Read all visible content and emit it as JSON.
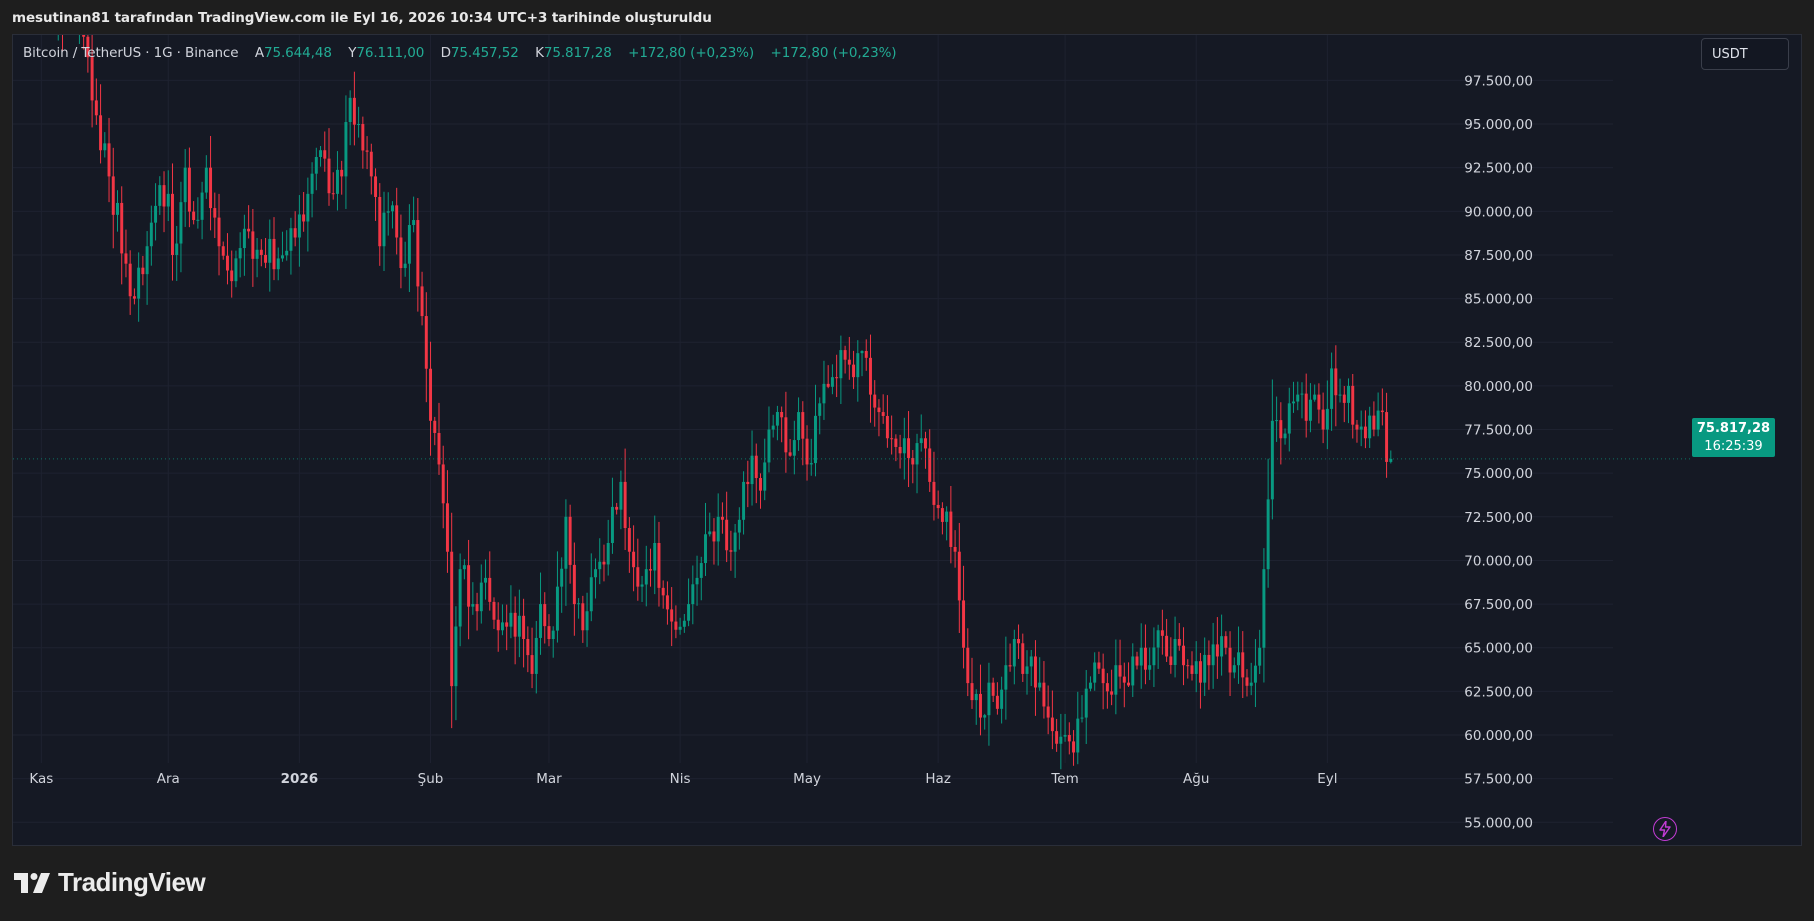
{
  "header": {
    "caption": "mesutinan81 tarafından TradingView.com ile Eyl 16, 2026 10:34 UTC+3 tarihinde oluşturuldu"
  },
  "legend": {
    "symbol": "Bitcoin / TetherUS · 1G · Binance",
    "open_label": "A",
    "open": "75.644,48",
    "high_label": "Y",
    "high": "76.111,00",
    "low_label": "D",
    "low": "75.457,52",
    "close_label": "K",
    "close": "75.817,28",
    "change1": "+172,80 (+0,23%)",
    "change2": "+172,80 (+0,23%)"
  },
  "currency_button": "USDT",
  "last_price": {
    "price": "75.817,28",
    "countdown": "16:25:39"
  },
  "footer": {
    "logo_text": "TradingView"
  },
  "colors": {
    "up": "#089981",
    "down": "#f23645",
    "background": "#151924",
    "grid": "#1e2230",
    "text": "#d1d4dc"
  },
  "chart_data": {
    "type": "candlestick",
    "currency": "USDT",
    "y_ticks": [
      "55.000,00",
      "57.500,00",
      "60.000,00",
      "62.500,00",
      "65.000,00",
      "67.500,00",
      "70.000,00",
      "72.500,00",
      "75.000,00",
      "77.500,00",
      "80.000,00",
      "82.500,00",
      "85.000,00",
      "87.500,00",
      "90.000,00",
      "92.500,00",
      "95.000,00",
      "97.500,00"
    ],
    "y_tick_values": [
      55000,
      57500,
      60000,
      62500,
      65000,
      67500,
      70000,
      72500,
      75000,
      77500,
      80000,
      82500,
      85000,
      87500,
      90000,
      92500,
      95000,
      97500
    ],
    "ylim": [
      53700,
      100100
    ],
    "x_labels": [
      "Kas",
      "Ara",
      "2026",
      "Şub",
      "Mar",
      "Nis",
      "May",
      "Haz",
      "Tem",
      "Ağu",
      "Eyl"
    ],
    "x_label_days": [
      0,
      30,
      61,
      92,
      120,
      151,
      181,
      212,
      242,
      273,
      304
    ],
    "day_range": [
      -6.7,
      328.5
    ],
    "last_close": 75817.28,
    "series_anchor_closes": [
      {
        "day": 3,
        "close": 100500
      },
      {
        "day": 10,
        "close": 100000
      },
      {
        "day": 13,
        "close": 95500
      },
      {
        "day": 16,
        "close": 92000
      },
      {
        "day": 20,
        "close": 87000
      },
      {
        "day": 22,
        "close": 85000
      },
      {
        "day": 25,
        "close": 88000
      },
      {
        "day": 28,
        "close": 91500
      },
      {
        "day": 30,
        "close": 91000
      },
      {
        "day": 31,
        "close": 87500
      },
      {
        "day": 34,
        "close": 92500
      },
      {
        "day": 36,
        "close": 89500
      },
      {
        "day": 39,
        "close": 92500
      },
      {
        "day": 42,
        "close": 88000
      },
      {
        "day": 45,
        "close": 86000
      },
      {
        "day": 48,
        "close": 89000
      },
      {
        "day": 52,
        "close": 87500
      },
      {
        "day": 56,
        "close": 87300
      },
      {
        "day": 60,
        "close": 88500
      },
      {
        "day": 63,
        "close": 91000
      },
      {
        "day": 66,
        "close": 93500
      },
      {
        "day": 69,
        "close": 91000
      },
      {
        "day": 71,
        "close": 92000
      },
      {
        "day": 73,
        "close": 96500
      },
      {
        "day": 75,
        "close": 95000
      },
      {
        "day": 78,
        "close": 92000
      },
      {
        "day": 80,
        "close": 88000
      },
      {
        "day": 82,
        "close": 90000
      },
      {
        "day": 84,
        "close": 88500
      },
      {
        "day": 86,
        "close": 87000
      },
      {
        "day": 88,
        "close": 89500
      },
      {
        "day": 90,
        "close": 84000
      },
      {
        "day": 92,
        "close": 78000
      },
      {
        "day": 94,
        "close": 75500
      },
      {
        "day": 96,
        "close": 70500
      },
      {
        "day": 97,
        "close": 62800
      },
      {
        "day": 99,
        "close": 69500
      },
      {
        "day": 102,
        "close": 67500
      },
      {
        "day": 105,
        "close": 69000
      },
      {
        "day": 108,
        "close": 66000
      },
      {
        "day": 111,
        "close": 67000
      },
      {
        "day": 114,
        "close": 65500
      },
      {
        "day": 116,
        "close": 63500
      },
      {
        "day": 118,
        "close": 67500
      },
      {
        "day": 120,
        "close": 65500
      },
      {
        "day": 122,
        "close": 68500
      },
      {
        "day": 124,
        "close": 72500
      },
      {
        "day": 126,
        "close": 67500
      },
      {
        "day": 128,
        "close": 66000
      },
      {
        "day": 131,
        "close": 69500
      },
      {
        "day": 134,
        "close": 71000
      },
      {
        "day": 137,
        "close": 74500
      },
      {
        "day": 139,
        "close": 70500
      },
      {
        "day": 141,
        "close": 68500
      },
      {
        "day": 143,
        "close": 69500
      },
      {
        "day": 145,
        "close": 71000
      },
      {
        "day": 147,
        "close": 68000
      },
      {
        "day": 149,
        "close": 66500
      },
      {
        "day": 151,
        "close": 66200
      },
      {
        "day": 153,
        "close": 67500
      },
      {
        "day": 155,
        "close": 69000
      },
      {
        "day": 157,
        "close": 71500
      },
      {
        "day": 160,
        "close": 72500
      },
      {
        "day": 163,
        "close": 70500
      },
      {
        "day": 166,
        "close": 74500
      },
      {
        "day": 168,
        "close": 76000
      },
      {
        "day": 170,
        "close": 74000
      },
      {
        "day": 172,
        "close": 77500
      },
      {
        "day": 175,
        "close": 78200
      },
      {
        "day": 177,
        "close": 76000
      },
      {
        "day": 179,
        "close": 78500
      },
      {
        "day": 181,
        "close": 75500
      },
      {
        "day": 184,
        "close": 79000
      },
      {
        "day": 187,
        "close": 80500
      },
      {
        "day": 190,
        "close": 81500
      },
      {
        "day": 192,
        "close": 80500
      },
      {
        "day": 194,
        "close": 82000
      },
      {
        "day": 196,
        "close": 79500
      },
      {
        "day": 198,
        "close": 78500
      },
      {
        "day": 200,
        "close": 77000
      },
      {
        "day": 202,
        "close": 76500
      },
      {
        "day": 204,
        "close": 77000
      },
      {
        "day": 206,
        "close": 75500
      },
      {
        "day": 208,
        "close": 77000
      },
      {
        "day": 210,
        "close": 74500
      },
      {
        "day": 212,
        "close": 73000
      },
      {
        "day": 214,
        "close": 72800
      },
      {
        "day": 216,
        "close": 70500
      },
      {
        "day": 218,
        "close": 65000
      },
      {
        "day": 220,
        "close": 62000
      },
      {
        "day": 222,
        "close": 61000
      },
      {
        "day": 224,
        "close": 63000
      },
      {
        "day": 226,
        "close": 61500
      },
      {
        "day": 228,
        "close": 64000
      },
      {
        "day": 230,
        "close": 65500
      },
      {
        "day": 232,
        "close": 63500
      },
      {
        "day": 234,
        "close": 64500
      },
      {
        "day": 236,
        "close": 63000
      },
      {
        "day": 238,
        "close": 61000
      },
      {
        "day": 240,
        "close": 59500
      },
      {
        "day": 242,
        "close": 60000
      },
      {
        "day": 244,
        "close": 59000
      },
      {
        "day": 246,
        "close": 61000
      },
      {
        "day": 248,
        "close": 63000
      },
      {
        "day": 250,
        "close": 63800
      },
      {
        "day": 252,
        "close": 62500
      },
      {
        "day": 254,
        "close": 64000
      },
      {
        "day": 256,
        "close": 63000
      },
      {
        "day": 258,
        "close": 64500
      },
      {
        "day": 260,
        "close": 65000
      },
      {
        "day": 262,
        "close": 64000
      },
      {
        "day": 264,
        "close": 66000
      },
      {
        "day": 266,
        "close": 64500
      },
      {
        "day": 268,
        "close": 65500
      },
      {
        "day": 270,
        "close": 64000
      },
      {
        "day": 272,
        "close": 63500
      },
      {
        "day": 274,
        "close": 63000
      },
      {
        "day": 276,
        "close": 64000
      },
      {
        "day": 278,
        "close": 64500
      },
      {
        "day": 280,
        "close": 65000
      },
      {
        "day": 282,
        "close": 64000
      },
      {
        "day": 284,
        "close": 63300
      },
      {
        "day": 286,
        "close": 63000
      },
      {
        "day": 288,
        "close": 65000
      },
      {
        "day": 289,
        "close": 69500
      },
      {
        "day": 290,
        "close": 73500
      },
      {
        "day": 291,
        "close": 78000
      },
      {
        "day": 293,
        "close": 77000
      },
      {
        "day": 295,
        "close": 79000
      },
      {
        "day": 297,
        "close": 79500
      },
      {
        "day": 299,
        "close": 78000
      },
      {
        "day": 301,
        "close": 79500
      },
      {
        "day": 303,
        "close": 77500
      },
      {
        "day": 305,
        "close": 81000
      },
      {
        "day": 307,
        "close": 79500
      },
      {
        "day": 309,
        "close": 80000
      },
      {
        "day": 311,
        "close": 77500
      },
      {
        "day": 313,
        "close": 77000
      },
      {
        "day": 315,
        "close": 77500
      },
      {
        "day": 317,
        "close": 78500
      },
      {
        "day": 318,
        "close": 75644.48
      },
      {
        "day": 319,
        "close": 75817.28
      }
    ]
  }
}
